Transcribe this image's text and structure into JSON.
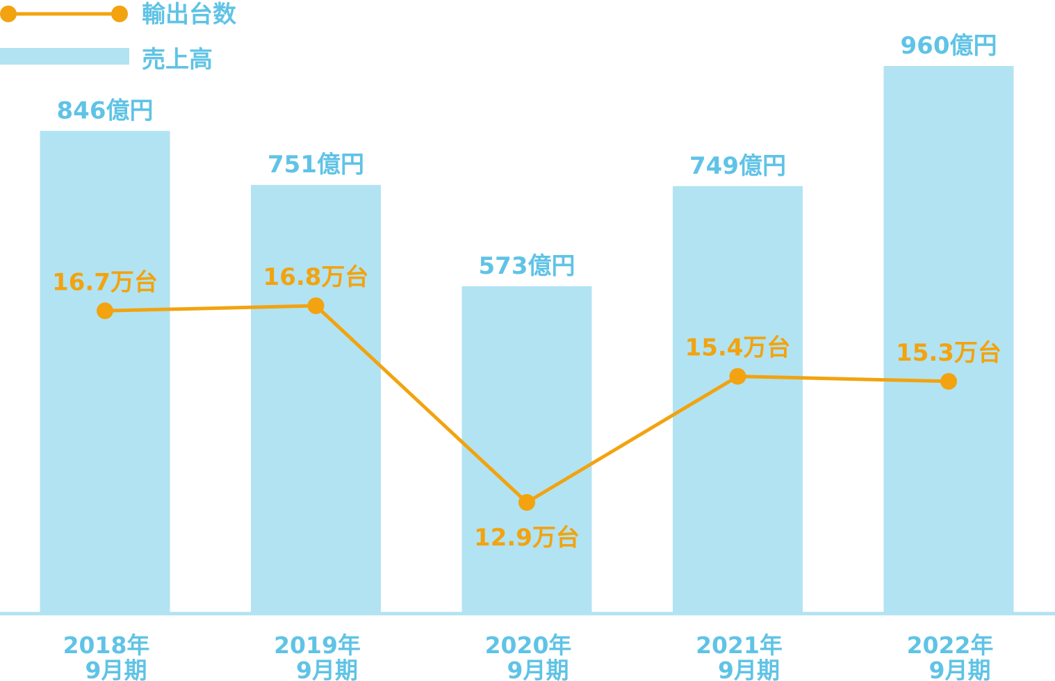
{
  "chart_data": {
    "type": "bar",
    "categories": [
      [
        "2018年",
        "9月期"
      ],
      [
        "2019年",
        "9月期"
      ],
      [
        "2020年",
        "9月期"
      ],
      [
        "2021年",
        "9月期"
      ],
      [
        "2022年",
        "9月期"
      ]
    ],
    "series": [
      {
        "name": "売上高",
        "type": "bar",
        "values": [
          846,
          751,
          573,
          749,
          960
        ],
        "labels": [
          "846億円",
          "751億円",
          "573億円",
          "749億円",
          "960億円"
        ],
        "color": "#b2e3f2"
      },
      {
        "name": "輸出台数",
        "type": "line",
        "values": [
          16.7,
          16.8,
          12.9,
          15.4,
          15.3
        ],
        "labels": [
          "16.7万台",
          "16.8万台",
          "12.9万台",
          "15.4万台",
          "15.3万台"
        ],
        "color": "#f2a30f"
      }
    ],
    "legend": {
      "placement": "top-left",
      "entries": [
        "輸出台数",
        "売上高"
      ]
    },
    "bar_ylim": [
      0,
      1000
    ],
    "line_ylim": [
      0,
      22
    ],
    "grid": false,
    "colors": {
      "axis": "#b2e3f2",
      "bar_label": "#5fc3e6",
      "line_label": "#f2a30f",
      "category_label": "#5fc3e6",
      "legend_text": "#5fc3e6"
    }
  }
}
